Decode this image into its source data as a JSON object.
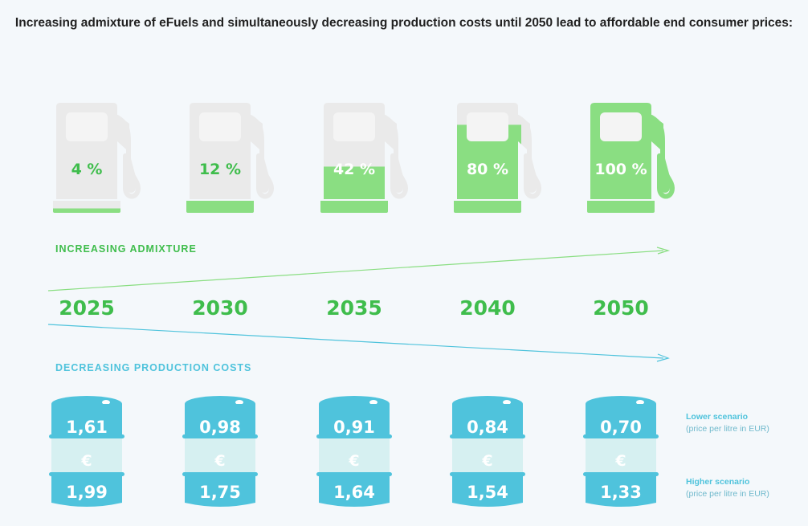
{
  "headline": "Increasing admixture of eFuels and simultaneously decreasing production costs until 2050 lead to affordable end consumer prices:",
  "admixture_label": "INCREASING ADMIXTURE",
  "costs_label": "DECREASING PRODUCTION COSTS",
  "currency_symbol": "€",
  "scenarios": {
    "lower_title": "Lower scenario",
    "lower_sub": "(price per litre in EUR)",
    "higher_title": "Higher scenario",
    "higher_sub": "(price per litre in EUR)"
  },
  "colors": {
    "green": "#3fbd4c",
    "light_green": "#8ade82",
    "grey": "#eaeaea",
    "cyan": "#4fc3dc",
    "pale_cyan": "#d6f0f1",
    "background": "#f4f8fb"
  },
  "chart_data": {
    "type": "table",
    "years": [
      "2025",
      "2030",
      "2035",
      "2040",
      "2050"
    ],
    "admixture_percent": [
      4,
      12,
      42,
      80,
      100
    ],
    "admixture_labels": [
      "4 %",
      "12 %",
      "42 %",
      "80 %",
      "100 %"
    ],
    "lower_prices": [
      "1,61",
      "0,98",
      "0,91",
      "0,84",
      "0,70"
    ],
    "higher_prices": [
      "1,99",
      "1,75",
      "1,64",
      "1,54",
      "1,33"
    ]
  }
}
